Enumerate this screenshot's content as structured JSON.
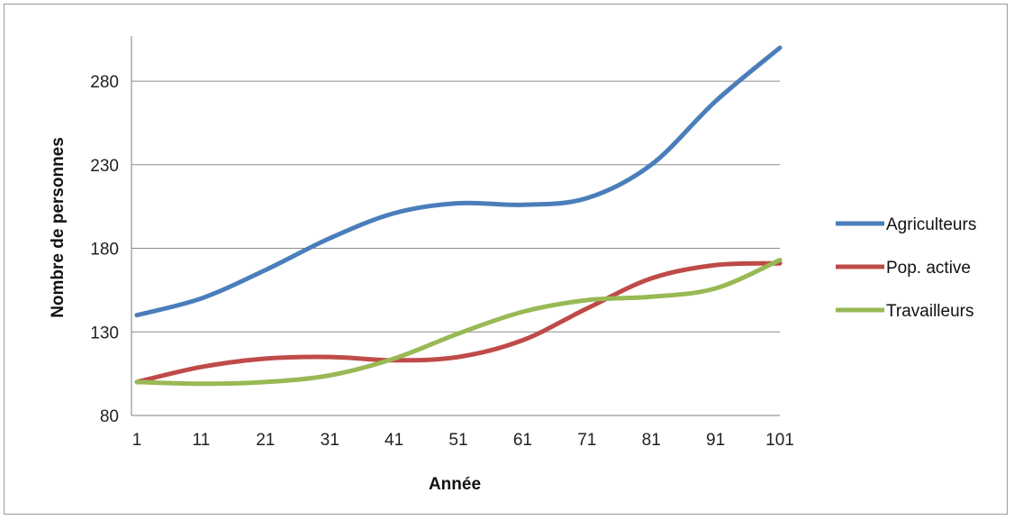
{
  "chart_data": {
    "type": "line",
    "title": "",
    "xlabel": "Année",
    "ylabel": "Nombre de personnes",
    "x": [
      1,
      11,
      21,
      31,
      41,
      51,
      61,
      71,
      81,
      91,
      101
    ],
    "x_tick_labels": [
      "1",
      "11",
      "21",
      "31",
      "41",
      "51",
      "61",
      "71",
      "81",
      "91",
      "101"
    ],
    "y_ticks": [
      80,
      130,
      180,
      230,
      280
    ],
    "y_tick_labels": [
      "80",
      "130",
      "180",
      "230",
      "280"
    ],
    "xlim": [
      1,
      101
    ],
    "ylim": [
      80,
      307
    ],
    "grid": "horizontal",
    "legend_position": "right",
    "series": [
      {
        "name": "Agriculteurs",
        "color": "#4a7ebb",
        "values": [
          140,
          150,
          167,
          186,
          201,
          207,
          206,
          210,
          230,
          268,
          300
        ]
      },
      {
        "name": "Pop. active",
        "color": "#be4b48",
        "values": [
          100,
          109,
          114,
          115,
          113,
          115,
          125,
          144,
          162,
          170,
          171
        ]
      },
      {
        "name": "Travailleurs",
        "color": "#98b954",
        "values": [
          100,
          99,
          100,
          104,
          114,
          129,
          142,
          149,
          151,
          156,
          173
        ]
      }
    ]
  }
}
